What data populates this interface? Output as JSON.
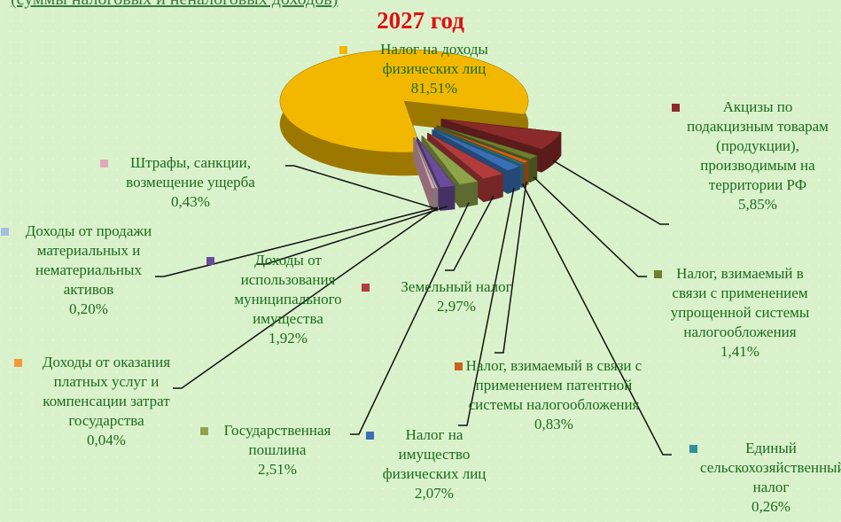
{
  "chart_data": {
    "type": "pie",
    "subtitle": "(суммы налоговых и неналоговых доходов)",
    "title": "2027 год",
    "categories": [
      "Налог на доходы физических лиц",
      "Акцизы по подакцизным товарам (продукции), производимым на территории РФ",
      "Налог, взимаемый в связи с применением упрощенной системы налогообложения",
      "Налог, взимаемый в связи с применением патентной системы налогообложения",
      "Единый сельскохозяйственный налог",
      "Налог на имущество физических лиц",
      "Земельный налог",
      "Государственная пошлина",
      "Доходы от использования муниципального имущества",
      "Доходы от оказания платных услуг и компенсации затрат государства",
      "Доходы от продажи материальных и нематериальных активов",
      "Штрафы, санкции, возмещение ущерба"
    ],
    "values": [
      81.51,
      5.85,
      1.41,
      0.83,
      0.26,
      2.07,
      2.97,
      2.51,
      1.92,
      0.04,
      0.2,
      0.43
    ],
    "value_labels": [
      "81,51%",
      "5,85%",
      "1,41%",
      "0,83%",
      "0,26%",
      "2,07%",
      "2,97%",
      "2,51%",
      "1,92%",
      "0,04%",
      "0,20%",
      "0,43%"
    ],
    "colors": [
      "#f2b800",
      "#8a2a2a",
      "#6f7d2c",
      "#c8641e",
      "#2f8f9e",
      "#3a6fb5",
      "#b23c3c",
      "#8fa34a",
      "#6b4c9a",
      "#f39a3a",
      "#a9bde0",
      "#e0a8b8"
    ]
  }
}
